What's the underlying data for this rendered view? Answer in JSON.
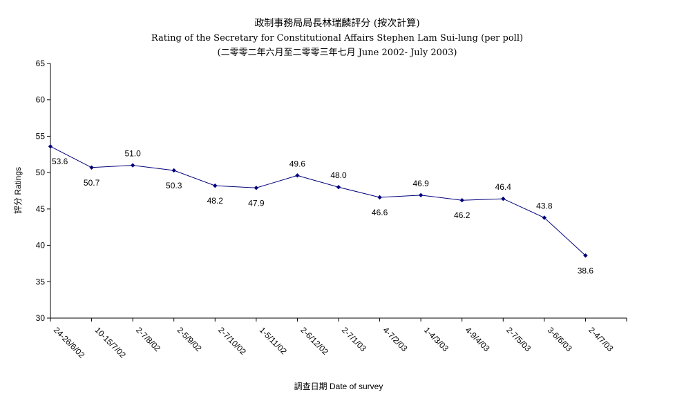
{
  "chart_data": {
    "type": "line",
    "title": "政制事務局局長林瑞麟評分 (按次計算)",
    "subtitle": "Rating of the Secretary for Constitutional Affairs Stephen Lam Sui-lung (per poll)",
    "subtitle2": "(二零零二年六月至二零零三年七月 June 2002- July 2003)",
    "xlabel": "調查日期 Date of survey",
    "ylabel": "評分 Ratings",
    "categories": [
      "24-26/6/02",
      "10-15/7/02",
      "2-7/8/02",
      "2-5/9/02",
      "2-7/10/02",
      "1-5/11/02",
      "2-6/12/02",
      "2-7/1/03",
      "4-7/2/03",
      "1-4/3/03",
      "4-9/4/03",
      "2-7/5/03",
      "3-6/6/03",
      "2-4/7/03"
    ],
    "values": [
      53.6,
      50.7,
      51.0,
      50.3,
      48.2,
      47.9,
      49.6,
      48.0,
      46.6,
      46.9,
      46.2,
      46.4,
      43.8,
      38.6
    ],
    "data_labels": [
      "53.6",
      "50.7",
      "51.0",
      "50.3",
      "48.2",
      "47.9",
      "49.6",
      "48.0",
      "46.6",
      "46.9",
      "46.2",
      "46.4",
      "43.8",
      "38.6"
    ],
    "ylim": [
      30,
      65
    ],
    "yticks": [
      30,
      35,
      40,
      45,
      50,
      55,
      60,
      65
    ],
    "grid": false,
    "legend": "none",
    "line_color": "#00007a",
    "marker_color": "#00007a",
    "axis_color": "#000000"
  }
}
